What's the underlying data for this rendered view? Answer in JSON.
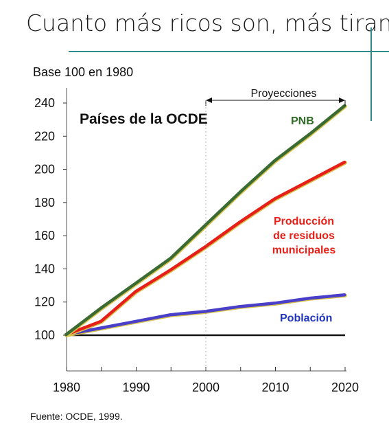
{
  "headline": "Cuanto más ricos son, más tiran",
  "source": "Fuente: OCDE, 1999.",
  "chart_data": {
    "type": "line",
    "title": "Países de la OCDE",
    "ylabel": "Base 100 en 1980",
    "xlabel": "",
    "xlim": [
      1980,
      2020
    ],
    "ylim": [
      90,
      245
    ],
    "x_ticks": [
      1980,
      1990,
      2000,
      2010,
      2020
    ],
    "y_ticks": [
      100,
      120,
      140,
      160,
      180,
      200,
      220,
      240
    ],
    "annotation": {
      "label": "Proyecciones",
      "x_start": 2000,
      "x_end": 2020
    },
    "series": [
      {
        "name": "PNB",
        "color": "#3a6b32",
        "label_color": "#2f6a26",
        "x": [
          1980,
          1985,
          1990,
          1995,
          2000,
          2005,
          2010,
          2015,
          2020
        ],
        "y": [
          100,
          116,
          131,
          146,
          166,
          186,
          205,
          221,
          238
        ]
      },
      {
        "name": "Producción de residuos municipales",
        "color": "#e62019",
        "label_color": "#e62019",
        "label_lines": [
          "Producción",
          "de residuos",
          "municipales"
        ],
        "x": [
          1980,
          1985,
          1990,
          1995,
          2000,
          2005,
          2010,
          2015,
          2020
        ],
        "y": [
          100,
          108,
          126,
          139,
          153,
          168,
          182,
          193,
          204
        ]
      },
      {
        "name": "Población",
        "color": "#4a3fc8",
        "label_color": "#1f35c0",
        "x": [
          1980,
          1985,
          1990,
          1995,
          2000,
          2005,
          2010,
          2015,
          2020
        ],
        "y": [
          100,
          104,
          108,
          112,
          114,
          117,
          119,
          122,
          124
        ]
      }
    ],
    "baseline": {
      "y": 100,
      "color": "#111111"
    },
    "grid": false,
    "legend": "inline labels"
  }
}
